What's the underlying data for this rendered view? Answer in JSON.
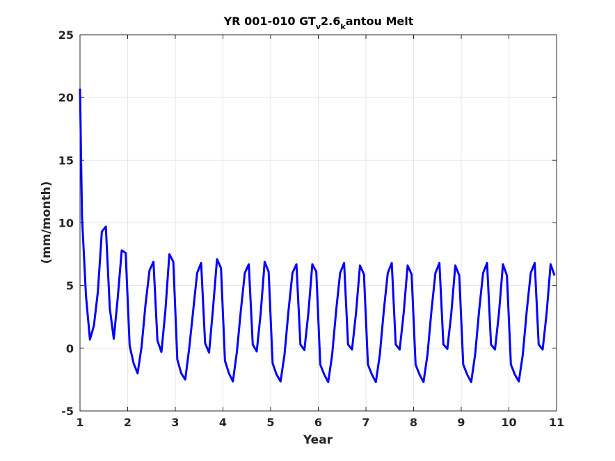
{
  "chart_data": {
    "type": "line",
    "title": {
      "main_1": "YR 001-010 GT",
      "sub_1": "v",
      "main_2": "2.6",
      "sub_2": "k",
      "main_3": "antou Melt"
    },
    "xlabel": "Year",
    "ylabel": "(mm/month)",
    "xlim": [
      1,
      11
    ],
    "ylim": [
      -5,
      25
    ],
    "xticks": [
      "1",
      "2",
      "3",
      "4",
      "5",
      "6",
      "7",
      "8",
      "9",
      "10",
      "11"
    ],
    "yticks": [
      "-5",
      "0",
      "5",
      "10",
      "15",
      "20",
      "25"
    ],
    "grid": true,
    "line_color": "#0000ff",
    "series": [
      {
        "x": [
          1.0,
          1.0417,
          1.125,
          1.2083,
          1.2917,
          1.375,
          1.4583,
          1.5417,
          1.625,
          1.7083,
          1.7917,
          1.875,
          1.9583,
          2.0417,
          2.125,
          2.2083,
          2.2917,
          2.375,
          2.4583,
          2.5417,
          2.625,
          2.7083,
          2.7917,
          2.875,
          2.9583,
          3.0417,
          3.125,
          3.2083,
          3.2917,
          3.375,
          3.4583,
          3.5417,
          3.625,
          3.7083,
          3.7917,
          3.875,
          3.9583,
          4.0417,
          4.125,
          4.2083,
          4.2917,
          4.375,
          4.4583,
          4.5417,
          4.625,
          4.7083,
          4.7917,
          4.875,
          4.9583,
          5.0417,
          5.125,
          5.2083,
          5.2917,
          5.375,
          5.4583,
          5.5417,
          5.625,
          5.7083,
          5.7917,
          5.875,
          5.9583,
          6.0417,
          6.125,
          6.2083,
          6.2917,
          6.375,
          6.4583,
          6.5417,
          6.625,
          6.7083,
          6.7917,
          6.875,
          6.9583,
          7.0417,
          7.125,
          7.2083,
          7.2917,
          7.375,
          7.4583,
          7.5417,
          7.625,
          7.7083,
          7.7917,
          7.875,
          7.9583,
          8.0417,
          8.125,
          8.2083,
          8.2917,
          8.375,
          8.4583,
          8.5417,
          8.625,
          8.7083,
          8.7917,
          8.875,
          8.9583,
          9.0417,
          9.125,
          9.2083,
          9.2917,
          9.375,
          9.4583,
          9.5417,
          9.625,
          9.7083,
          9.7917,
          9.875,
          9.9583,
          10.0417,
          10.125,
          10.2083,
          10.2917,
          10.375,
          10.4583,
          10.5417,
          10.625,
          10.7083,
          10.7917,
          10.875,
          10.9583
        ],
        "values": [
          20.7,
          10.5,
          4.2,
          0.7,
          1.8,
          4.5,
          9.3,
          9.7,
          3.2,
          0.75,
          4.0,
          7.8,
          7.6,
          0.2,
          -1.2,
          -2.0,
          0.1,
          3.5,
          6.2,
          6.9,
          0.6,
          -0.3,
          3.0,
          7.5,
          6.9,
          -0.9,
          -2.0,
          -2.5,
          0.0,
          3.0,
          6.0,
          6.8,
          0.4,
          -0.35,
          3.2,
          7.1,
          6.4,
          -1.0,
          -2.0,
          -2.65,
          -0.3,
          3.0,
          6.0,
          6.7,
          0.3,
          -0.25,
          2.8,
          6.9,
          6.1,
          -1.2,
          -2.1,
          -2.65,
          -0.5,
          3.0,
          6.0,
          6.7,
          0.3,
          -0.15,
          2.8,
          6.7,
          6.1,
          -1.3,
          -2.1,
          -2.7,
          -0.5,
          3.0,
          6.0,
          6.8,
          0.3,
          -0.1,
          2.8,
          6.6,
          5.9,
          -1.3,
          -2.1,
          -2.7,
          -0.5,
          3.0,
          6.0,
          6.8,
          0.3,
          -0.1,
          2.8,
          6.6,
          5.9,
          -1.3,
          -2.1,
          -2.7,
          -0.5,
          3.0,
          6.0,
          6.8,
          0.3,
          -0.05,
          2.8,
          6.6,
          5.8,
          -1.3,
          -2.1,
          -2.7,
          -0.5,
          3.0,
          6.0,
          6.8,
          0.3,
          -0.1,
          2.8,
          6.7,
          5.8,
          -1.3,
          -2.1,
          -2.65,
          -0.5,
          3.0,
          6.0,
          6.8,
          0.3,
          -0.1,
          2.8,
          6.7,
          5.8
        ]
      }
    ]
  }
}
